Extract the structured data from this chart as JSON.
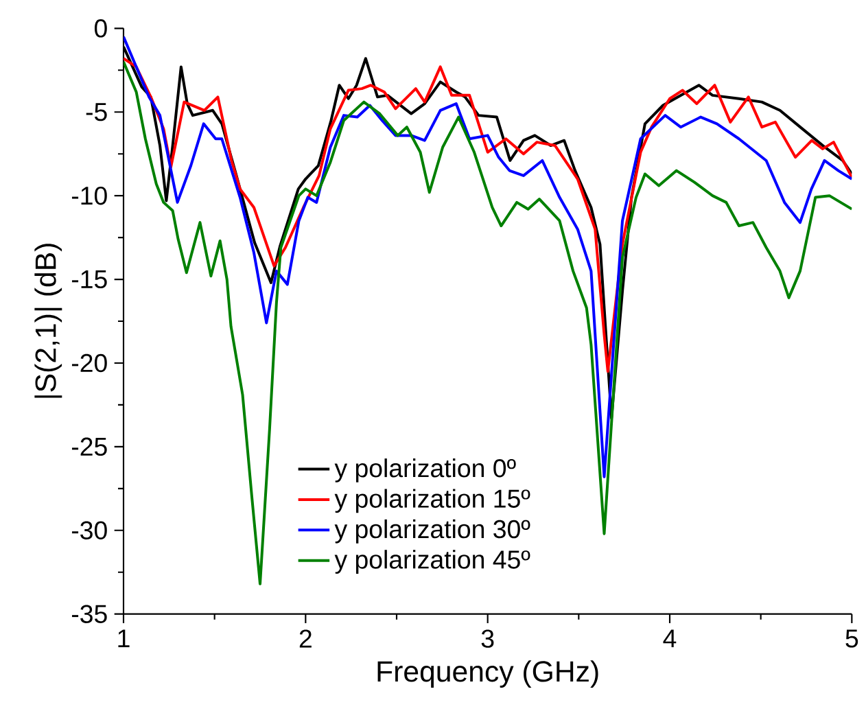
{
  "chart_data": {
    "type": "line",
    "xlabel": "Frequency (GHz)",
    "ylabel": "|S(2,1)| (dB)",
    "xlim": [
      1,
      5
    ],
    "ylim": [
      -35,
      0
    ],
    "xticks": [
      1,
      2,
      3,
      4,
      5
    ],
    "yticks": [
      -35,
      -30,
      -25,
      -20,
      -15,
      -10,
      -5,
      0
    ],
    "grid": false,
    "legend": "bottom left",
    "line_style": "solid",
    "marker": "none",
    "series": [
      {
        "name": "y polarization 0º",
        "color": "#000000",
        "x": [
          1.0,
          1.1,
          1.15,
          1.2,
          1.235,
          1.27,
          1.316,
          1.35,
          1.38,
          1.49,
          1.54,
          1.62,
          1.72,
          1.81,
          1.86,
          1.96,
          2.0,
          2.07,
          2.14,
          2.185,
          2.235,
          2.28,
          2.33,
          2.395,
          2.45,
          2.58,
          2.654,
          2.74,
          2.827,
          2.876,
          2.95,
          3.05,
          3.123,
          3.197,
          3.259,
          3.346,
          3.42,
          3.48,
          3.568,
          3.617,
          3.68,
          3.741,
          3.79,
          3.864,
          3.963,
          4.062,
          4.16,
          4.235,
          4.38,
          4.506,
          4.605,
          4.728,
          4.852,
          4.95,
          5.0
        ],
        "values": [
          -1.1,
          -3.5,
          -4.1,
          -7,
          -10.3,
          -7,
          -2.3,
          -4.5,
          -5.2,
          -4.9,
          -5.7,
          -8.8,
          -12.8,
          -15.2,
          -13,
          -9.6,
          -9,
          -8.2,
          -5.5,
          -3.4,
          -4.2,
          -3.4,
          -1.8,
          -4.1,
          -4.0,
          -5.1,
          -4.5,
          -3.2,
          -3.8,
          -4.1,
          -5.2,
          -5.3,
          -7.9,
          -6.7,
          -6.4,
          -7.0,
          -6.7,
          -8.5,
          -10.7,
          -12.9,
          -23.3,
          -15.6,
          -10.1,
          -5.7,
          -4.6,
          -4.0,
          -3.4,
          -4.0,
          -4.2,
          -4.4,
          -4.9,
          -6.0,
          -7.1,
          -7.9,
          -8.7
        ]
      },
      {
        "name": "y polarization 15º",
        "color": "#ff0000",
        "x": [
          1.0,
          1.07,
          1.15,
          1.22,
          1.26,
          1.333,
          1.444,
          1.518,
          1.593,
          1.64,
          1.716,
          1.827,
          1.889,
          1.988,
          2.074,
          2.136,
          2.235,
          2.309,
          2.358,
          2.432,
          2.494,
          2.605,
          2.654,
          2.74,
          2.802,
          2.9,
          3.0,
          3.1,
          3.197,
          3.27,
          3.37,
          3.494,
          3.59,
          3.64,
          3.66,
          3.74,
          3.84,
          3.9,
          4.0,
          4.07,
          4.148,
          4.247,
          4.333,
          4.432,
          4.506,
          4.58,
          4.69,
          4.78,
          4.84,
          4.9,
          5.0
        ],
        "values": [
          -1.8,
          -2.3,
          -4.1,
          -6,
          -8.3,
          -4.4,
          -4.9,
          -4.1,
          -7.9,
          -9.6,
          -10.7,
          -14.2,
          -13.1,
          -10.7,
          -8.8,
          -6.0,
          -3.7,
          -3.6,
          -3.4,
          -3.8,
          -4.8,
          -3.6,
          -4.4,
          -2.3,
          -4.0,
          -4.0,
          -7.4,
          -6.6,
          -7.5,
          -6.8,
          -7.0,
          -9.0,
          -12.0,
          -18.3,
          -20.5,
          -12.9,
          -7.4,
          -5.9,
          -4.2,
          -3.7,
          -4.5,
          -3.4,
          -5.6,
          -4.1,
          -5.9,
          -5.6,
          -7.7,
          -6.7,
          -7.2,
          -6.8,
          -8.9
        ]
      },
      {
        "name": "y polarization 30º",
        "color": "#0000ff",
        "x": [
          1.0,
          1.14,
          1.2,
          1.296,
          1.37,
          1.44,
          1.506,
          1.54,
          1.64,
          1.716,
          1.785,
          1.84,
          1.9,
          1.963,
          2.012,
          2.06,
          2.136,
          2.21,
          2.284,
          2.353,
          2.42,
          2.494,
          2.58,
          2.654,
          2.74,
          2.827,
          2.9,
          3.0,
          3.06,
          3.12,
          3.197,
          3.3,
          3.395,
          3.494,
          3.568,
          3.64,
          3.74,
          3.84,
          3.975,
          4.06,
          4.17,
          4.259,
          4.38,
          4.53,
          4.63,
          4.716,
          4.778,
          4.85,
          4.926,
          5.0
        ],
        "values": [
          -0.5,
          -4.1,
          -5.2,
          -10.4,
          -8.2,
          -5.7,
          -6.6,
          -6.6,
          -10.1,
          -13.4,
          -17.6,
          -14.5,
          -15.3,
          -11.5,
          -10.1,
          -10.4,
          -7.1,
          -5.2,
          -5.3,
          -4.6,
          -5.5,
          -6.4,
          -6.4,
          -6.7,
          -4.9,
          -4.5,
          -6.6,
          -6.4,
          -7.7,
          -8.5,
          -8.8,
          -7.9,
          -10.1,
          -12.0,
          -14.5,
          -26.8,
          -11.5,
          -6.6,
          -5.2,
          -5.9,
          -5.3,
          -5.7,
          -6.6,
          -7.9,
          -10.4,
          -11.6,
          -9.6,
          -7.9,
          -8.5,
          -9.0
        ]
      },
      {
        "name": "y polarization 45º",
        "color": "#008000",
        "x": [
          1.0,
          1.07,
          1.12,
          1.18,
          1.22,
          1.27,
          1.3,
          1.346,
          1.42,
          1.48,
          1.53,
          1.568,
          1.59,
          1.654,
          1.704,
          1.75,
          1.802,
          1.84,
          1.864,
          1.963,
          2.0,
          2.06,
          2.136,
          2.21,
          2.32,
          2.407,
          2.506,
          2.556,
          2.63,
          2.68,
          2.753,
          2.84,
          2.926,
          3.025,
          3.074,
          3.16,
          3.222,
          3.284,
          3.395,
          3.469,
          3.543,
          3.568,
          3.64,
          3.74,
          3.815,
          3.864,
          3.94,
          4.037,
          4.136,
          4.235,
          4.31,
          4.38,
          4.457,
          4.53,
          4.605,
          4.654,
          4.716,
          4.8,
          4.877,
          5.0
        ],
        "values": [
          -2.0,
          -3.8,
          -6.6,
          -9.3,
          -10.4,
          -10.9,
          -12.6,
          -14.6,
          -11.6,
          -14.8,
          -12.7,
          -15.0,
          -17.8,
          -21.9,
          -27.9,
          -33.2,
          -24.0,
          -16.4,
          -13.1,
          -10.0,
          -9.6,
          -10.0,
          -8.0,
          -5.5,
          -4.4,
          -5.1,
          -6.4,
          -5.9,
          -7.4,
          -9.8,
          -7.1,
          -5.3,
          -7.4,
          -10.7,
          -11.8,
          -10.4,
          -10.8,
          -10.2,
          -11.5,
          -14.5,
          -16.7,
          -18.9,
          -30.2,
          -13.7,
          -10.1,
          -8.7,
          -9.4,
          -8.5,
          -9.2,
          -10.0,
          -10.4,
          -11.8,
          -11.6,
          -13.1,
          -14.5,
          -16.1,
          -14.5,
          -10.1,
          -10.0,
          -10.8
        ]
      }
    ]
  }
}
